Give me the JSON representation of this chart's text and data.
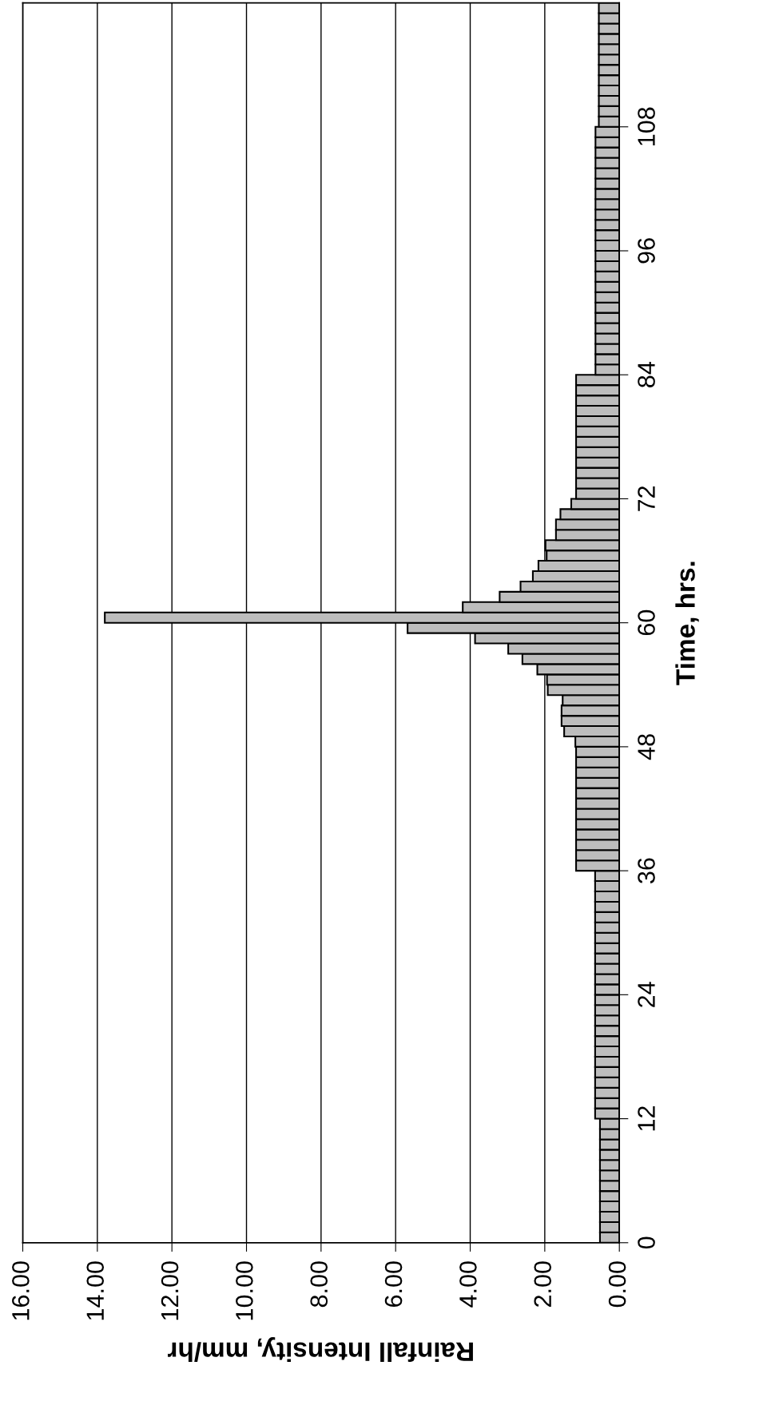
{
  "chart_data": {
    "type": "bar",
    "orientation": "horizontal",
    "xlabel": "Rainfall Intensity, mm/hr",
    "ylabel": "Time, hrs.",
    "color": "#bdbdbd",
    "grid": "x",
    "x": [
      0.5,
      1.5,
      2.5,
      3.5,
      4.5,
      5.5,
      6.5,
      7.5,
      8.5,
      9.5,
      10.5,
      11.5,
      12.5,
      13.5,
      14.5,
      15.5,
      16.5,
      17.5,
      18.5,
      19.5,
      20.5,
      21.5,
      22.5,
      23.5,
      24.5,
      25.5,
      26.5,
      27.5,
      28.5,
      29.5,
      30.5,
      31.5,
      32.5,
      33.5,
      34.5,
      35.5,
      36.5,
      37.5,
      38.5,
      39.5,
      40.5,
      41.5,
      42.5,
      43.5,
      44.5,
      45.5,
      46.5,
      47.5,
      48.5,
      49.5,
      50.5,
      51.5,
      52.5,
      53.5,
      54.5,
      55.5,
      56.5,
      57.5,
      58.5,
      59.5,
      60.5,
      61.5,
      62.5,
      63.5,
      64.5,
      65.5,
      66.5,
      67.5,
      68.5,
      69.5,
      70.5,
      71.5,
      72.5,
      73.5,
      74.5,
      75.5,
      76.5,
      77.5,
      78.5,
      79.5,
      80.5,
      81.5,
      82.5,
      83.5,
      84.5,
      85.5,
      86.5,
      87.5,
      88.5,
      89.5,
      90.5,
      91.5,
      92.5,
      93.5,
      94.5,
      95.5,
      96.5,
      97.5,
      98.5,
      99.5,
      100.5,
      101.5,
      102.5,
      103.5,
      104.5,
      105.5,
      106.5,
      107.5,
      108.5,
      109.5,
      110.5,
      111.5,
      112.5,
      113.5,
      114.5,
      115.5,
      116.5,
      117.5,
      118.5,
      119.5
    ],
    "values": [
      0.52,
      0.52,
      0.52,
      0.52,
      0.52,
      0.52,
      0.52,
      0.52,
      0.52,
      0.52,
      0.52,
      0.52,
      0.65,
      0.65,
      0.65,
      0.65,
      0.65,
      0.65,
      0.65,
      0.65,
      0.65,
      0.65,
      0.65,
      0.65,
      0.65,
      0.65,
      0.65,
      0.65,
      0.65,
      0.65,
      0.65,
      0.65,
      0.65,
      0.65,
      0.65,
      0.65,
      1.16,
      1.16,
      1.16,
      1.16,
      1.16,
      1.16,
      1.16,
      1.16,
      1.16,
      1.16,
      1.16,
      1.16,
      1.18,
      1.48,
      1.55,
      1.55,
      1.52,
      1.92,
      1.94,
      2.2,
      2.6,
      2.98,
      3.87,
      5.68,
      13.8,
      4.2,
      3.21,
      2.65,
      2.32,
      2.17,
      1.95,
      1.98,
      1.7,
      1.7,
      1.58,
      1.29,
      1.16,
      1.16,
      1.16,
      1.16,
      1.16,
      1.16,
      1.16,
      1.16,
      1.16,
      1.16,
      1.16,
      1.16,
      0.64,
      0.64,
      0.64,
      0.64,
      0.64,
      0.64,
      0.64,
      0.64,
      0.64,
      0.64,
      0.64,
      0.64,
      0.64,
      0.64,
      0.64,
      0.64,
      0.64,
      0.64,
      0.64,
      0.64,
      0.64,
      0.64,
      0.64,
      0.64,
      0.55,
      0.55,
      0.55,
      0.55,
      0.55,
      0.55,
      0.55,
      0.55,
      0.55,
      0.55,
      0.55,
      0.55
    ],
    "xlim": [
      16,
      0
    ],
    "xticks": [
      {
        "value": 16,
        "label": "16.00"
      },
      {
        "value": 14,
        "label": "14.00"
      },
      {
        "value": 12,
        "label": "12.00"
      },
      {
        "value": 10,
        "label": "10.00"
      },
      {
        "value": 8,
        "label": "8.00"
      },
      {
        "value": 6,
        "label": "6.00"
      },
      {
        "value": 4,
        "label": "4.00"
      },
      {
        "value": 2,
        "label": "2.00"
      },
      {
        "value": 0,
        "label": "0.00"
      }
    ],
    "ylim": [
      0,
      120
    ],
    "yticks": [
      0,
      12,
      24,
      36,
      48,
      60,
      72,
      84,
      96,
      108
    ]
  }
}
